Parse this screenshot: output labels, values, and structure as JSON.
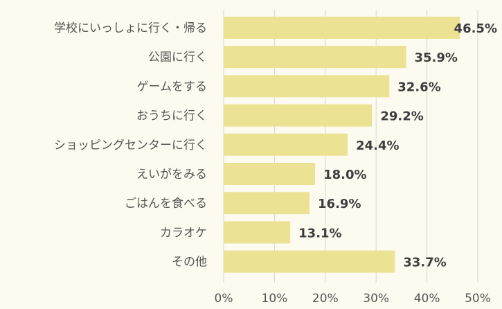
{
  "chart_data": {
    "type": "bar",
    "orientation": "horizontal",
    "categories": [
      "学校にいっしょに行く・帰る",
      "公園に行く",
      "ゲームをする",
      "おうちに行く",
      "ショッピングセンターに行く",
      "えいがをみる",
      "ごはんを食べる",
      "カラオケ",
      "その他"
    ],
    "values": [
      46.5,
      35.9,
      32.6,
      29.2,
      24.4,
      18.0,
      16.9,
      13.1,
      33.7
    ],
    "value_labels": [
      "46.5%",
      "35.9%",
      "32.6%",
      "29.2%",
      "24.4%",
      "18.0%",
      "16.9%",
      "13.1%",
      "33.7%"
    ],
    "xlim": [
      0,
      50
    ],
    "xticks": [
      0,
      10,
      20,
      30,
      40,
      50
    ],
    "xtick_labels": [
      "0%",
      "10%",
      "20%",
      "30%",
      "40%",
      "50%"
    ],
    "grid": "vertical",
    "legend": "none",
    "colors": {
      "bar": "#ece294",
      "background": "#fdfbef",
      "grid": "#d6d6d6",
      "text": "#555555",
      "value_text": "#3d3d3d"
    }
  }
}
